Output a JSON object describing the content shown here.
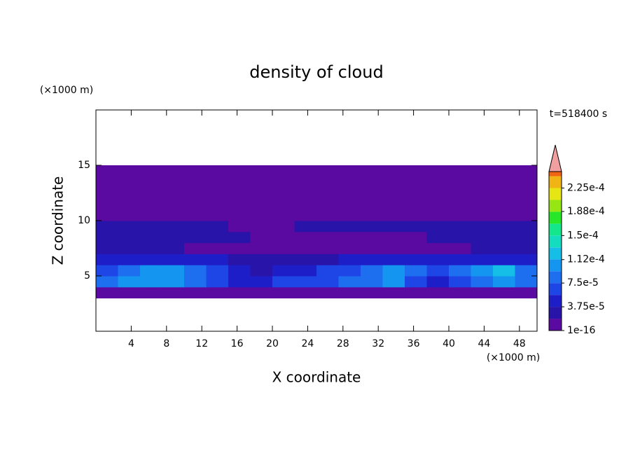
{
  "chart_data": {
    "type": "contour",
    "title": "density of cloud",
    "xlabel": "X coordinate",
    "ylabel": "Z coordinate",
    "xunit": "(×1000 m)",
    "yunit": "(×1000 m)",
    "annotation": "t=518400 s",
    "xlim": [
      0,
      50
    ],
    "ylim": [
      0,
      20
    ],
    "xticks": [
      4,
      8,
      12,
      16,
      20,
      24,
      28,
      32,
      36,
      40,
      44,
      48
    ],
    "yticks": [
      5,
      10,
      15
    ],
    "x": [
      1.25,
      3.75,
      6.25,
      8.75,
      11.25,
      13.75,
      16.25,
      18.75,
      21.25,
      23.75,
      26.25,
      28.75,
      31.25,
      33.75,
      36.25,
      38.75,
      41.25,
      43.75,
      46.25,
      48.75
    ],
    "z": [
      3.5,
      4.5,
      5.5,
      6.5,
      7.5,
      8.5,
      9.5,
      10.5,
      11.5,
      12.5,
      13.5,
      14.5
    ],
    "values": [
      [
        1e-06,
        1e-06,
        1e-06,
        1e-06,
        1e-06,
        1e-06,
        1e-06,
        1e-06,
        1e-06,
        1e-06,
        1e-06,
        1e-06,
        1e-06,
        1e-06,
        1e-06,
        1e-06,
        1e-06,
        1e-06,
        1e-06,
        1e-06
      ],
      [
        8e-05,
        0.0001,
        0.00011,
        0.0001,
        8e-05,
        6e-05,
        4.5e-05,
        4.5e-05,
        6e-05,
        6e-05,
        7e-05,
        8e-05,
        8e-05,
        0.0001,
        6e-05,
        4.5e-05,
        7e-05,
        9e-05,
        0.0001,
        8e-05
      ],
      [
        6e-05,
        9e-05,
        0.0001,
        0.00011,
        9e-05,
        7e-05,
        4.5e-05,
        2.5e-05,
        4.5e-05,
        4.5e-05,
        6e-05,
        7e-05,
        9e-05,
        0.00011,
        8e-05,
        6e-05,
        8e-05,
        0.00011,
        0.00012,
        9e-05
      ],
      [
        4.5e-05,
        4.5e-05,
        4.5e-05,
        4.5e-05,
        4.5e-05,
        4.5e-05,
        2.5e-05,
        2.5e-05,
        2.5e-05,
        2.5e-05,
        2.5e-05,
        4.5e-05,
        4.5e-05,
        4.5e-05,
        4.5e-05,
        4.5e-05,
        4.5e-05,
        4.5e-05,
        4.5e-05,
        4.5e-05
      ],
      [
        2.5e-05,
        2.5e-05,
        2.5e-05,
        2.5e-05,
        1e-06,
        1e-06,
        1e-06,
        1e-06,
        1e-06,
        1e-06,
        1e-06,
        1e-06,
        1e-06,
        1e-06,
        1e-06,
        1e-06,
        1e-06,
        2.5e-05,
        2.5e-05,
        2.5e-05
      ],
      [
        2.5e-05,
        2.5e-05,
        2.5e-05,
        2.5e-05,
        2.5e-05,
        2.5e-05,
        2.5e-05,
        1e-06,
        1e-06,
        1e-06,
        1e-06,
        1e-06,
        1e-06,
        1e-06,
        1e-06,
        2.5e-05,
        2.5e-05,
        2.5e-05,
        2.5e-05,
        2.5e-05
      ],
      [
        2.5e-05,
        2.5e-05,
        2.5e-05,
        2.5e-05,
        2.5e-05,
        2.5e-05,
        1e-06,
        1e-06,
        1e-06,
        2.5e-05,
        2.5e-05,
        2.5e-05,
        2.5e-05,
        2.5e-05,
        2.5e-05,
        2.5e-05,
        2.5e-05,
        2.5e-05,
        2.5e-05,
        2.5e-05
      ],
      [
        1e-06,
        1e-06,
        1e-06,
        1e-06,
        1e-06,
        1e-06,
        1e-06,
        1e-06,
        1e-06,
        1e-06,
        1e-06,
        1e-06,
        1e-06,
        1e-06,
        1e-06,
        1e-06,
        1e-06,
        1e-06,
        1e-06,
        1e-06
      ],
      [
        1e-06,
        1e-06,
        1e-06,
        1e-06,
        1e-06,
        1e-06,
        1e-06,
        1e-06,
        1e-06,
        1e-06,
        1e-06,
        1e-06,
        1e-06,
        1e-06,
        1e-06,
        1e-06,
        1e-06,
        1e-06,
        1e-06,
        1e-06
      ],
      [
        1e-06,
        1e-06,
        1e-06,
        1e-06,
        1e-06,
        1e-06,
        1e-06,
        1e-06,
        1e-06,
        1e-06,
        1e-06,
        1e-06,
        1e-06,
        1e-06,
        1e-06,
        1e-06,
        1e-06,
        1e-06,
        1e-06,
        1e-06
      ],
      [
        1e-06,
        1e-06,
        1e-06,
        1e-06,
        1e-06,
        1e-06,
        1e-06,
        1e-06,
        1e-06,
        1e-06,
        1e-06,
        1e-06,
        1e-06,
        1e-06,
        1e-06,
        1e-06,
        1e-06,
        1e-06,
        1e-06,
        1e-06
      ],
      [
        1e-06,
        1e-06,
        1e-06,
        1e-06,
        1e-06,
        1e-06,
        1e-06,
        1e-06,
        1e-06,
        1e-06,
        1e-06,
        1e-06,
        1e-06,
        1e-06,
        1e-06,
        1e-06,
        1e-06,
        1e-06,
        1e-06,
        1e-06
      ]
    ],
    "colorbar": {
      "clim": [
        1e-16,
        0.000251
      ],
      "ticks": [
        1e-16,
        {
          "value": 3.75e-05,
          "label": "3.75e-5"
        },
        {
          "value": 7.5e-05,
          "label": "7.5e-5"
        },
        {
          "value": 0.000112,
          "label": "1.12e-4"
        },
        {
          "value": 0.00015,
          "label": "1.5e-4"
        },
        {
          "value": 0.000188,
          "label": "1.88e-4"
        },
        {
          "value": 0.000225,
          "label": "2.25e-4"
        }
      ],
      "colors": [
        "#5a0aa0",
        "#2814a8",
        "#1e1ec8",
        "#1e46e6",
        "#1e6ef0",
        "#1496f0",
        "#14bee6",
        "#14dcbe",
        "#14e68c",
        "#28e628",
        "#96e614",
        "#e6e614",
        "#f0b414",
        "#f06414",
        "#e62814"
      ],
      "extend_color": "#f0a0a0"
    }
  }
}
